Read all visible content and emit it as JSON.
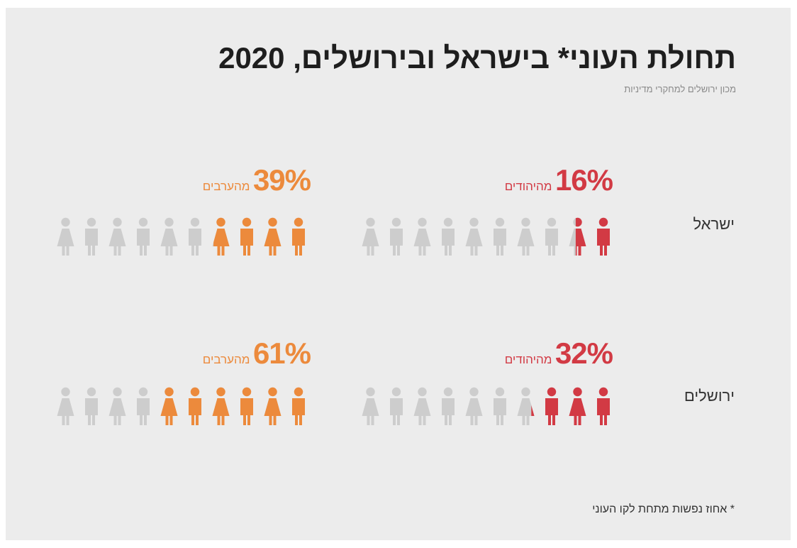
{
  "title": "תחולת העוני* בישראל ובירושלים, 2020",
  "subtitle": "מכון ירושלים למחקרי מדיניות",
  "footnote": "* אחוז נפשות מתחת לקו העוני",
  "colors": {
    "background": "#ececec",
    "jews": "#d23a44",
    "arabs": "#ec8a3c",
    "empty": "#cdcdcd",
    "title": "#1e1e1e"
  },
  "chart_data": {
    "type": "pictograph",
    "icons_per_group": 10,
    "icon_order": [
      "woman",
      "man",
      "woman",
      "man",
      "woman",
      "man",
      "woman",
      "man",
      "woman",
      "man"
    ],
    "fill_direction": "right-to-left",
    "rows": [
      {
        "label": "ישראל",
        "groups": [
          {
            "name": "מהיהודים",
            "pct_label": "16%",
            "value": 16,
            "color": "#d23a44"
          },
          {
            "name": "מהערבים",
            "pct_label": "39%",
            "value": 39,
            "color": "#ec8a3c"
          }
        ]
      },
      {
        "label": "ירושלים",
        "groups": [
          {
            "name": "מהיהודים",
            "pct_label": "32%",
            "value": 32,
            "color": "#d23a44"
          },
          {
            "name": "מהערבים",
            "pct_label": "61%",
            "value": 61,
            "color": "#ec8a3c"
          }
        ]
      }
    ]
  }
}
